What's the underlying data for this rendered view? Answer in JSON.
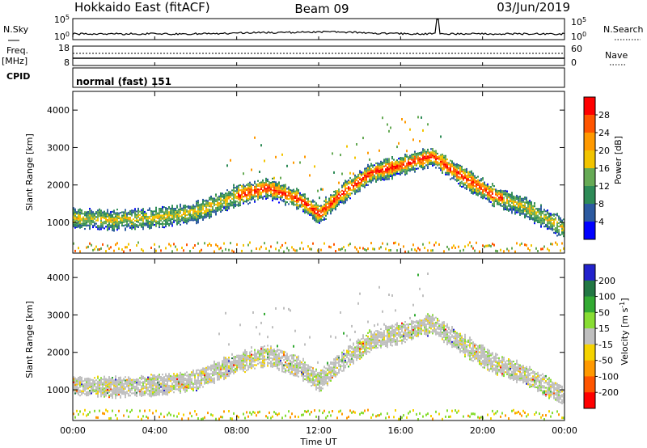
{
  "header": {
    "station": "Hokkaido East (fitACF)",
    "beam": "Beam 09",
    "date": "03/Jun/2019"
  },
  "strip": {
    "nsky_label": "N.Sky",
    "nsearch_label": "N.Search",
    "noise_ticks_left": [
      "10^5",
      "10^0"
    ],
    "noise_ticks_right": [
      "10^5",
      "10^0"
    ],
    "freq_label": "Freq.",
    "freq_unit": "[MHz]",
    "freq_ticks": [
      "18",
      "8"
    ],
    "nave_ticks": [
      "60",
      "0"
    ],
    "nave_label": "Nave",
    "cpid_label": "CPID",
    "cpid_value": "normal (fast) 151"
  },
  "colors": {
    "power": [
      "#0000ff",
      "#2c5aa0",
      "#2e8b57",
      "#66aa55",
      "#f2c400",
      "#ff9900",
      "#ff5500",
      "#ff0000"
    ],
    "velocity": [
      "#2222cc",
      "#227744",
      "#33aa33",
      "#88dd33",
      "#bfbfbf",
      "#f5d300",
      "#ff9900",
      "#ff5500",
      "#ff0000"
    ]
  },
  "chart_data": [
    {
      "type": "heatmap",
      "title": "",
      "xlabel": "",
      "ylabel": "Slant Range [km]",
      "xlim": [
        "00:00",
        "24:00"
      ],
      "ylim": [
        180,
        4500
      ],
      "x_ticks": [
        "00:00",
        "04:00",
        "08:00",
        "12:00",
        "16:00",
        "20:00",
        "00:00"
      ],
      "y_ticks": [
        1000,
        2000,
        3000,
        4000
      ],
      "colorbar": {
        "label": "Power [dB]",
        "range": [
          0,
          32
        ],
        "ticks": [
          "4",
          "8",
          "12",
          "16",
          "20",
          "24",
          "28"
        ]
      },
      "series": [
        {
          "name": "echo band",
          "x_hours": [
            0,
            2,
            4,
            6,
            8,
            9.5,
            11,
            12,
            13,
            14.5,
            16,
            17.5,
            19,
            20.5,
            22,
            24
          ],
          "y_km": [
            1100,
            1050,
            1100,
            1250,
            1700,
            1900,
            1600,
            1200,
            1700,
            2300,
            2500,
            2750,
            2200,
            1700,
            1400,
            800
          ]
        }
      ]
    },
    {
      "type": "heatmap",
      "title": "",
      "xlabel": "Time UT",
      "ylabel": "Slant Range [km]",
      "xlim": [
        "00:00",
        "24:00"
      ],
      "ylim": [
        180,
        4500
      ],
      "x_ticks": [
        "00:00",
        "04:00",
        "08:00",
        "12:00",
        "16:00",
        "20:00",
        "00:00"
      ],
      "y_ticks": [
        1000,
        2000,
        3000,
        4000
      ],
      "colorbar": {
        "label": "Velocity [m s^-1]",
        "range": [
          -250,
          250
        ],
        "ticks": [
          "200",
          "100",
          "50",
          "15",
          "-15",
          "-50",
          "-100",
          "-200"
        ]
      },
      "series": [
        {
          "name": "echo band",
          "x_hours": [
            0,
            2,
            4,
            6,
            8,
            9.5,
            11,
            12,
            13,
            14.5,
            16,
            17.5,
            19,
            20.5,
            22,
            24
          ],
          "y_km": [
            1100,
            1050,
            1100,
            1250,
            1700,
            1900,
            1600,
            1200,
            1700,
            2300,
            2500,
            2750,
            2200,
            1700,
            1400,
            800
          ]
        }
      ]
    }
  ]
}
